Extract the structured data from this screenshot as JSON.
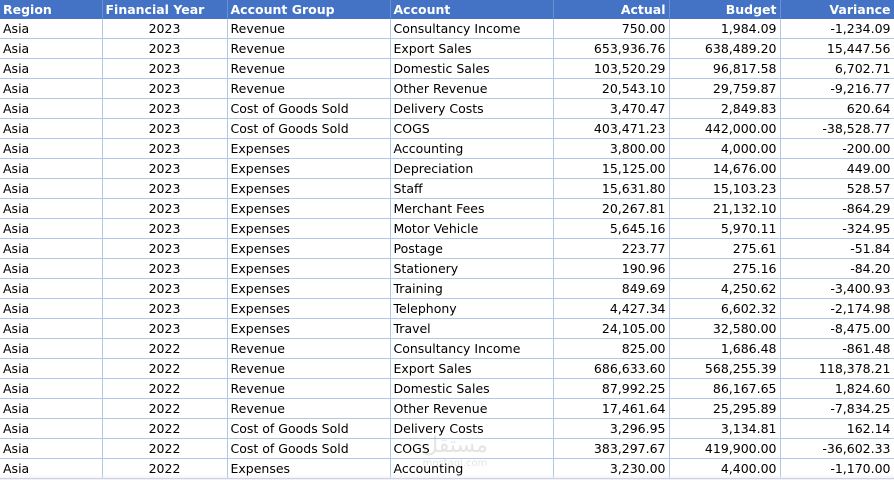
{
  "table": {
    "headers": [
      "Region",
      "Financial Year",
      "Account Group",
      "Account",
      "Actual",
      "Budget",
      "Variance"
    ],
    "rows": [
      [
        "Asia",
        "2023",
        "Revenue",
        "Consultancy Income",
        "750.00",
        "1,984.09",
        "-1,234.09"
      ],
      [
        "Asia",
        "2023",
        "Revenue",
        "Export Sales",
        "653,936.76",
        "638,489.20",
        "15,447.56"
      ],
      [
        "Asia",
        "2023",
        "Revenue",
        "Domestic Sales",
        "103,520.29",
        "96,817.58",
        "6,702.71"
      ],
      [
        "Asia",
        "2023",
        "Revenue",
        "Other Revenue",
        "20,543.10",
        "29,759.87",
        "-9,216.77"
      ],
      [
        "Asia",
        "2023",
        "Cost of Goods Sold",
        "Delivery Costs",
        "3,470.47",
        "2,849.83",
        "620.64"
      ],
      [
        "Asia",
        "2023",
        "Cost of Goods Sold",
        "COGS",
        "403,471.23",
        "442,000.00",
        "-38,528.77"
      ],
      [
        "Asia",
        "2023",
        "Expenses",
        "Accounting",
        "3,800.00",
        "4,000.00",
        "-200.00"
      ],
      [
        "Asia",
        "2023",
        "Expenses",
        "Depreciation",
        "15,125.00",
        "14,676.00",
        "449.00"
      ],
      [
        "Asia",
        "2023",
        "Expenses",
        "Staff",
        "15,631.80",
        "15,103.23",
        "528.57"
      ],
      [
        "Asia",
        "2023",
        "Expenses",
        "Merchant Fees",
        "20,267.81",
        "21,132.10",
        "-864.29"
      ],
      [
        "Asia",
        "2023",
        "Expenses",
        "Motor Vehicle",
        "5,645.16",
        "5,970.11",
        "-324.95"
      ],
      [
        "Asia",
        "2023",
        "Expenses",
        "Postage",
        "223.77",
        "275.61",
        "-51.84"
      ],
      [
        "Asia",
        "2023",
        "Expenses",
        "Stationery",
        "190.96",
        "275.16",
        "-84.20"
      ],
      [
        "Asia",
        "2023",
        "Expenses",
        "Training",
        "849.69",
        "4,250.62",
        "-3,400.93"
      ],
      [
        "Asia",
        "2023",
        "Expenses",
        "Telephony",
        "4,427.34",
        "6,602.32",
        "-2,174.98"
      ],
      [
        "Asia",
        "2023",
        "Expenses",
        "Travel",
        "24,105.00",
        "32,580.00",
        "-8,475.00"
      ],
      [
        "Asia",
        "2022",
        "Revenue",
        "Consultancy Income",
        "825.00",
        "1,686.48",
        "-861.48"
      ],
      [
        "Asia",
        "2022",
        "Revenue",
        "Export Sales",
        "686,633.60",
        "568,255.39",
        "118,378.21"
      ],
      [
        "Asia",
        "2022",
        "Revenue",
        "Domestic Sales",
        "87,992.25",
        "86,167.65",
        "1,824.60"
      ],
      [
        "Asia",
        "2022",
        "Revenue",
        "Other Revenue",
        "17,461.64",
        "25,295.89",
        "-7,834.25"
      ],
      [
        "Asia",
        "2022",
        "Cost of Goods Sold",
        "Delivery Costs",
        "3,296.95",
        "3,134.81",
        "162.14"
      ],
      [
        "Asia",
        "2022",
        "Cost of Goods Sold",
        "COGS",
        "383,297.67",
        "419,900.00",
        "-36,602.33"
      ],
      [
        "Asia",
        "2022",
        "Expenses",
        "Accounting",
        "3,230.00",
        "4,400.00",
        "-1,170.00"
      ]
    ]
  },
  "watermark": {
    "text": "مستقل",
    "subtext": "mostaql.com"
  }
}
